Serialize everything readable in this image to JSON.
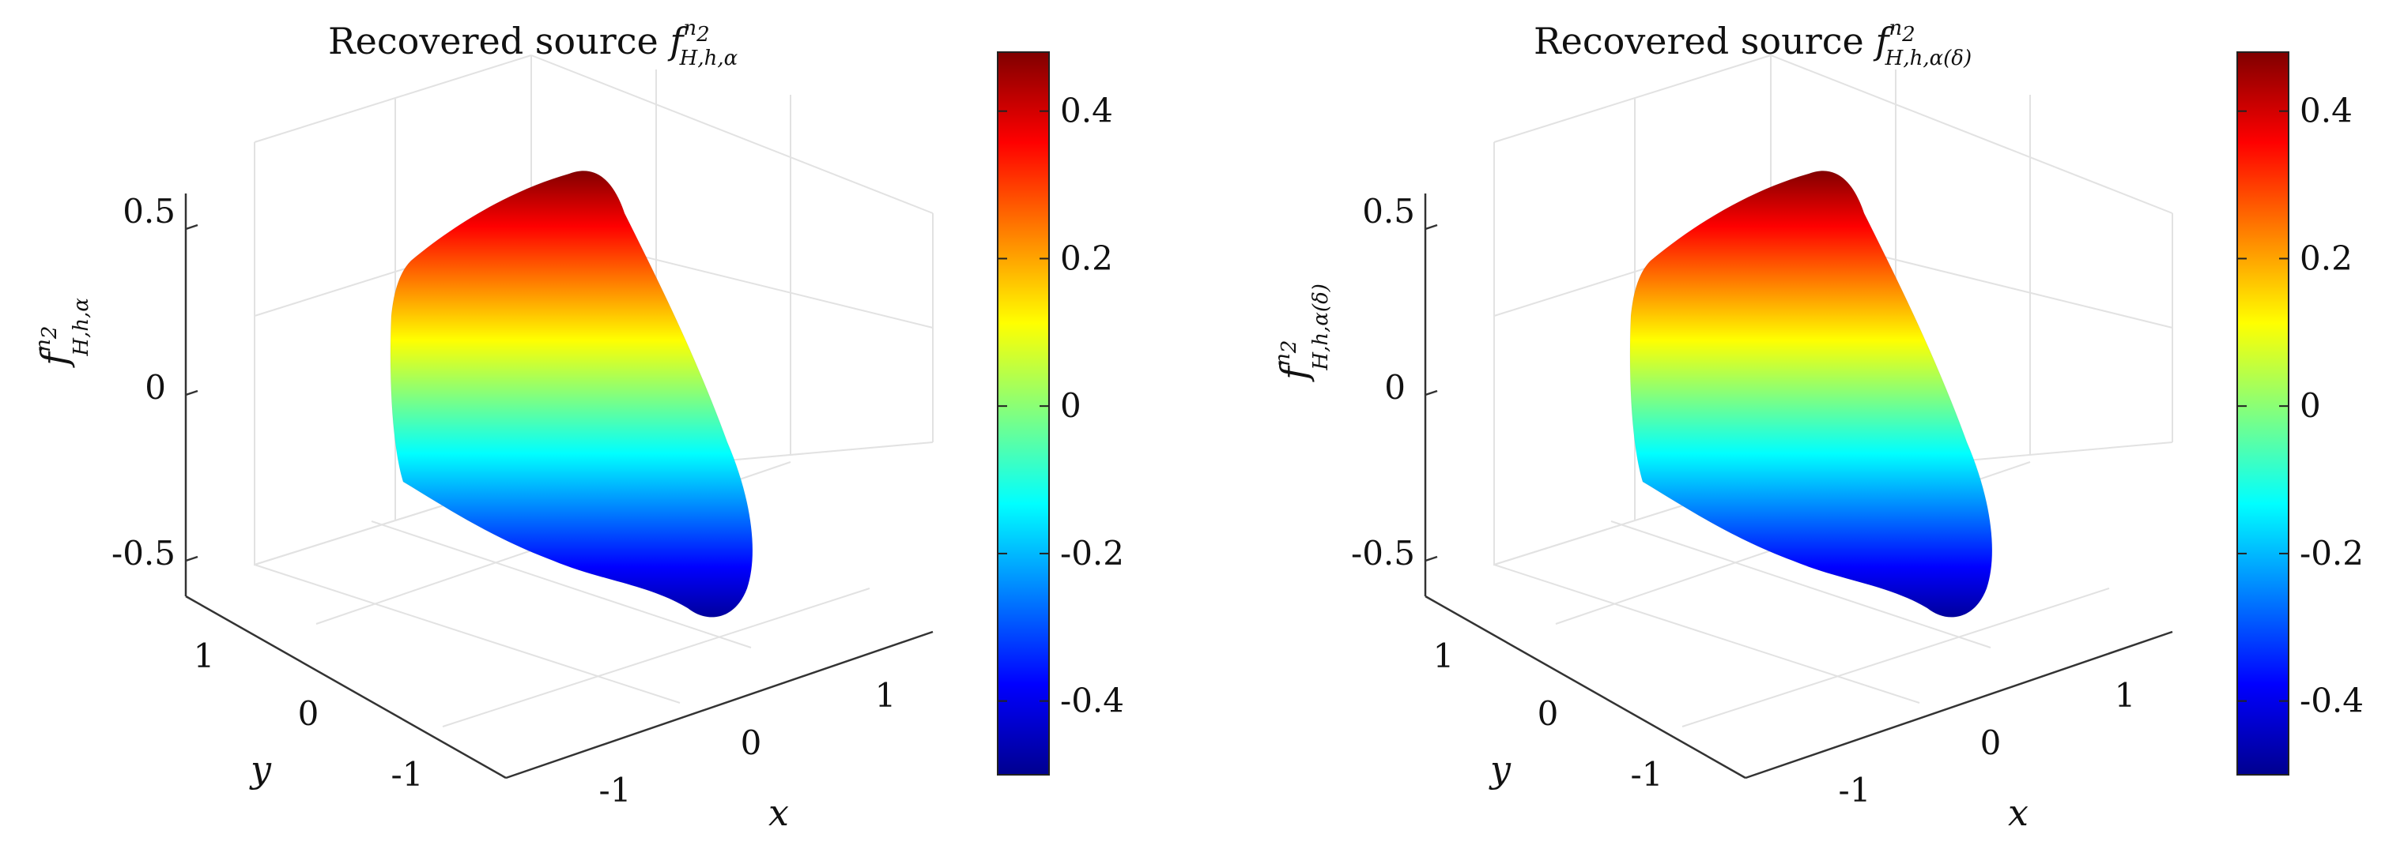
{
  "colors": {
    "colormap": [
      "#00008f",
      "#0000ff",
      "#0080ff",
      "#00ffff",
      "#80ff80",
      "#ffff00",
      "#ff8000",
      "#ff0000",
      "#800000"
    ]
  },
  "chart_data": [
    {
      "type": "surface",
      "title_prefix": "Recovered source ",
      "title_symbol": "f",
      "title_sup": "n",
      "title_sup_sub": "2",
      "title_sub": "H,h,α",
      "zlabel_symbol": "f",
      "zlabel_sup": "n",
      "zlabel_sup_sub": "2",
      "zlabel_sub": "H,h,α",
      "xlabel": "x",
      "ylabel": "y",
      "z_ticks": [
        "0.5",
        "0",
        "-0.5"
      ],
      "z_tick_values": [
        0.5,
        0,
        -0.5
      ],
      "x_ticks": [
        "-1",
        "0",
        "1"
      ],
      "y_ticks": [
        "1",
        "0",
        "-1"
      ],
      "colorbar_ticks": [
        "0.4",
        "0.2",
        "0",
        "-0.2",
        "-0.4"
      ],
      "colorbar_tick_values": [
        0.4,
        0.2,
        0,
        -0.2,
        -0.4
      ],
      "colorbar_range": [
        -0.5,
        0.48
      ],
      "value_range": [
        -0.5,
        0.48
      ]
    },
    {
      "type": "surface",
      "title_prefix": "Recovered source ",
      "title_symbol": "f",
      "title_sup": "n",
      "title_sup_sub": "2",
      "title_sub": "H,h,α(δ)",
      "zlabel_symbol": "f",
      "zlabel_sup": "n",
      "zlabel_sup_sub": "2",
      "zlabel_sub": "H,h,α(δ)",
      "xlabel": "x",
      "ylabel": "y",
      "z_ticks": [
        "0.5",
        "0",
        "-0.5"
      ],
      "z_tick_values": [
        0.5,
        0,
        -0.5
      ],
      "x_ticks": [
        "-1",
        "0",
        "1"
      ],
      "y_ticks": [
        "1",
        "0",
        "-1"
      ],
      "colorbar_ticks": [
        "0.4",
        "0.2",
        "0",
        "-0.2",
        "-0.4"
      ],
      "colorbar_tick_values": [
        0.4,
        0.2,
        0,
        -0.2,
        -0.4
      ],
      "colorbar_range": [
        -0.5,
        0.48
      ],
      "value_range": [
        -0.5,
        0.48
      ]
    }
  ]
}
